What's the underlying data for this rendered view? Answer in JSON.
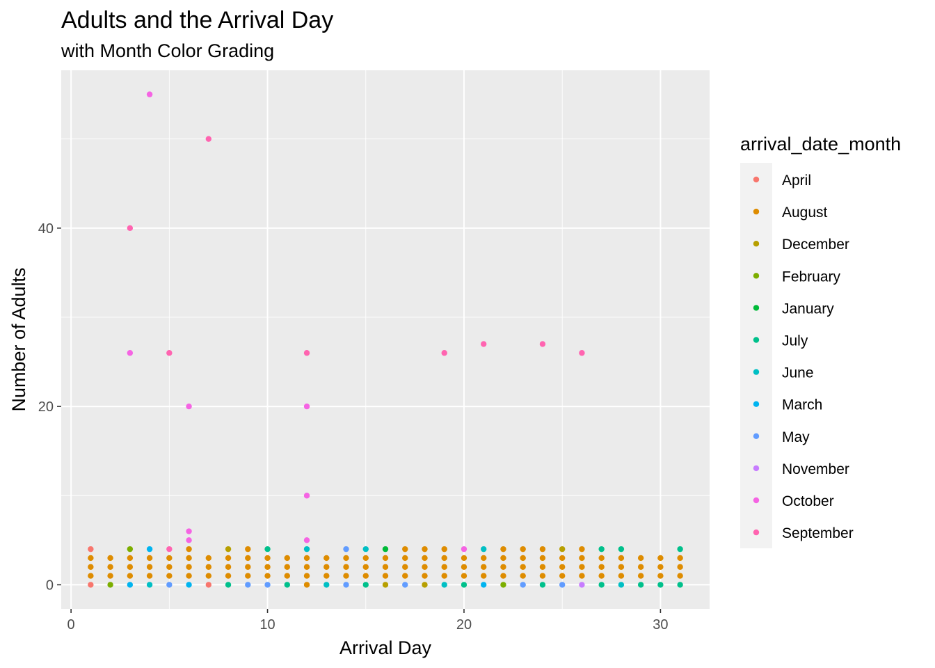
{
  "chart_data": {
    "type": "scatter",
    "title": "Adults and the Arrival Day",
    "subtitle": "with Month Color Grading",
    "xlabel": "Arrival Day",
    "ylabel": "Number of Adults",
    "xlim": [
      -0.5,
      32.5
    ],
    "ylim": [
      -2.7,
      57.7
    ],
    "x_ticks": [
      0,
      10,
      20,
      30
    ],
    "y_ticks": [
      0,
      20,
      40
    ],
    "grid": true,
    "legend": {
      "title": "arrival_date_month",
      "position": "right",
      "entries": [
        {
          "name": "April",
          "color": "#F8766D"
        },
        {
          "name": "August",
          "color": "#DE8C00"
        },
        {
          "name": "December",
          "color": "#B79F00"
        },
        {
          "name": "February",
          "color": "#7CAE00"
        },
        {
          "name": "January",
          "color": "#00BA38"
        },
        {
          "name": "July",
          "color": "#00C08B"
        },
        {
          "name": "June",
          "color": "#00BFC4"
        },
        {
          "name": "March",
          "color": "#00B4F0"
        },
        {
          "name": "May",
          "color": "#619CFF"
        },
        {
          "name": "November",
          "color": "#C77CFF"
        },
        {
          "name": "October",
          "color": "#F564E3"
        },
        {
          "name": "September",
          "color": "#FF64B0"
        }
      ]
    },
    "series": [
      {
        "name": "April",
        "points": [
          [
            1,
            4
          ],
          [
            1,
            0
          ],
          [
            7,
            0
          ]
        ]
      },
      {
        "name": "August",
        "points": [
          [
            1,
            1
          ],
          [
            1,
            2
          ],
          [
            1,
            3
          ],
          [
            2,
            1
          ],
          [
            2,
            2
          ],
          [
            2,
            3
          ],
          [
            3,
            1
          ],
          [
            3,
            2
          ],
          [
            3,
            3
          ],
          [
            4,
            1
          ],
          [
            4,
            2
          ],
          [
            4,
            3
          ],
          [
            5,
            1
          ],
          [
            5,
            2
          ],
          [
            5,
            3
          ],
          [
            6,
            1
          ],
          [
            6,
            2
          ],
          [
            6,
            3
          ],
          [
            6,
            4
          ],
          [
            7,
            1
          ],
          [
            7,
            2
          ],
          [
            7,
            3
          ],
          [
            8,
            1
          ],
          [
            8,
            2
          ],
          [
            8,
            3
          ],
          [
            9,
            1
          ],
          [
            9,
            2
          ],
          [
            9,
            3
          ],
          [
            9,
            4
          ],
          [
            10,
            1
          ],
          [
            10,
            2
          ],
          [
            10,
            3
          ],
          [
            11,
            1
          ],
          [
            11,
            2
          ],
          [
            11,
            3
          ],
          [
            12,
            0
          ],
          [
            12,
            1
          ],
          [
            12,
            2
          ],
          [
            12,
            3
          ],
          [
            13,
            1
          ],
          [
            13,
            2
          ],
          [
            13,
            3
          ],
          [
            14,
            1
          ],
          [
            14,
            2
          ],
          [
            14,
            3
          ],
          [
            15,
            1
          ],
          [
            15,
            2
          ],
          [
            15,
            3
          ],
          [
            16,
            1
          ],
          [
            16,
            2
          ],
          [
            16,
            3
          ],
          [
            17,
            1
          ],
          [
            17,
            2
          ],
          [
            17,
            3
          ],
          [
            17,
            4
          ],
          [
            18,
            1
          ],
          [
            18,
            2
          ],
          [
            18,
            3
          ],
          [
            18,
            4
          ],
          [
            19,
            1
          ],
          [
            19,
            2
          ],
          [
            19,
            3
          ],
          [
            19,
            4
          ],
          [
            20,
            1
          ],
          [
            20,
            2
          ],
          [
            20,
            3
          ],
          [
            21,
            1
          ],
          [
            21,
            2
          ],
          [
            21,
            3
          ],
          [
            22,
            1
          ],
          [
            22,
            2
          ],
          [
            22,
            3
          ],
          [
            22,
            4
          ],
          [
            23,
            1
          ],
          [
            23,
            2
          ],
          [
            23,
            3
          ],
          [
            23,
            4
          ],
          [
            24,
            1
          ],
          [
            24,
            2
          ],
          [
            24,
            3
          ],
          [
            24,
            4
          ],
          [
            25,
            1
          ],
          [
            25,
            2
          ],
          [
            25,
            3
          ],
          [
            26,
            1
          ],
          [
            26,
            2
          ],
          [
            26,
            3
          ],
          [
            26,
            4
          ],
          [
            27,
            1
          ],
          [
            27,
            2
          ],
          [
            27,
            3
          ],
          [
            28,
            1
          ],
          [
            28,
            2
          ],
          [
            28,
            3
          ],
          [
            29,
            1
          ],
          [
            29,
            2
          ],
          [
            29,
            3
          ],
          [
            30,
            1
          ],
          [
            30,
            2
          ],
          [
            30,
            3
          ],
          [
            31,
            1
          ],
          [
            31,
            2
          ],
          [
            31,
            3
          ]
        ]
      },
      {
        "name": "December",
        "points": [
          [
            8,
            4
          ],
          [
            16,
            0
          ],
          [
            18,
            0
          ],
          [
            25,
            4
          ]
        ]
      },
      {
        "name": "February",
        "points": [
          [
            2,
            0
          ],
          [
            3,
            4
          ],
          [
            22,
            0
          ]
        ]
      },
      {
        "name": "January",
        "points": [
          [
            16,
            4
          ]
        ]
      },
      {
        "name": "July",
        "points": [
          [
            8,
            0
          ],
          [
            10,
            4
          ],
          [
            11,
            0
          ],
          [
            15,
            0
          ],
          [
            20,
            0
          ],
          [
            24,
            0
          ],
          [
            27,
            0
          ],
          [
            27,
            4
          ],
          [
            28,
            4
          ],
          [
            29,
            0
          ],
          [
            30,
            0
          ],
          [
            31,
            0
          ],
          [
            31,
            4
          ]
        ]
      },
      {
        "name": "June",
        "points": [
          [
            4,
            0
          ],
          [
            12,
            4
          ],
          [
            13,
            0
          ],
          [
            15,
            4
          ],
          [
            19,
            0
          ],
          [
            21,
            4
          ],
          [
            28,
            0
          ]
        ]
      },
      {
        "name": "March",
        "points": [
          [
            3,
            0
          ],
          [
            4,
            4
          ],
          [
            6,
            0
          ],
          [
            21,
            0
          ]
        ]
      },
      {
        "name": "May",
        "points": [
          [
            5,
            0
          ],
          [
            9,
            0
          ],
          [
            10,
            0
          ],
          [
            14,
            0
          ],
          [
            14,
            4
          ],
          [
            17,
            0
          ],
          [
            23,
            0
          ],
          [
            25,
            0
          ]
        ]
      },
      {
        "name": "November",
        "points": [
          [
            26,
            0
          ]
        ]
      },
      {
        "name": "October",
        "points": [
          [
            3,
            26
          ],
          [
            4,
            55
          ],
          [
            6,
            20
          ],
          [
            6,
            6
          ],
          [
            6,
            5
          ],
          [
            12,
            20
          ],
          [
            12,
            10
          ],
          [
            12,
            5
          ],
          [
            20,
            4
          ]
        ]
      },
      {
        "name": "September",
        "points": [
          [
            3,
            40
          ],
          [
            5,
            26
          ],
          [
            5,
            4
          ],
          [
            7,
            50
          ],
          [
            12,
            26
          ],
          [
            19,
            26
          ],
          [
            21,
            27
          ],
          [
            24,
            27
          ],
          [
            26,
            26
          ]
        ]
      }
    ]
  }
}
